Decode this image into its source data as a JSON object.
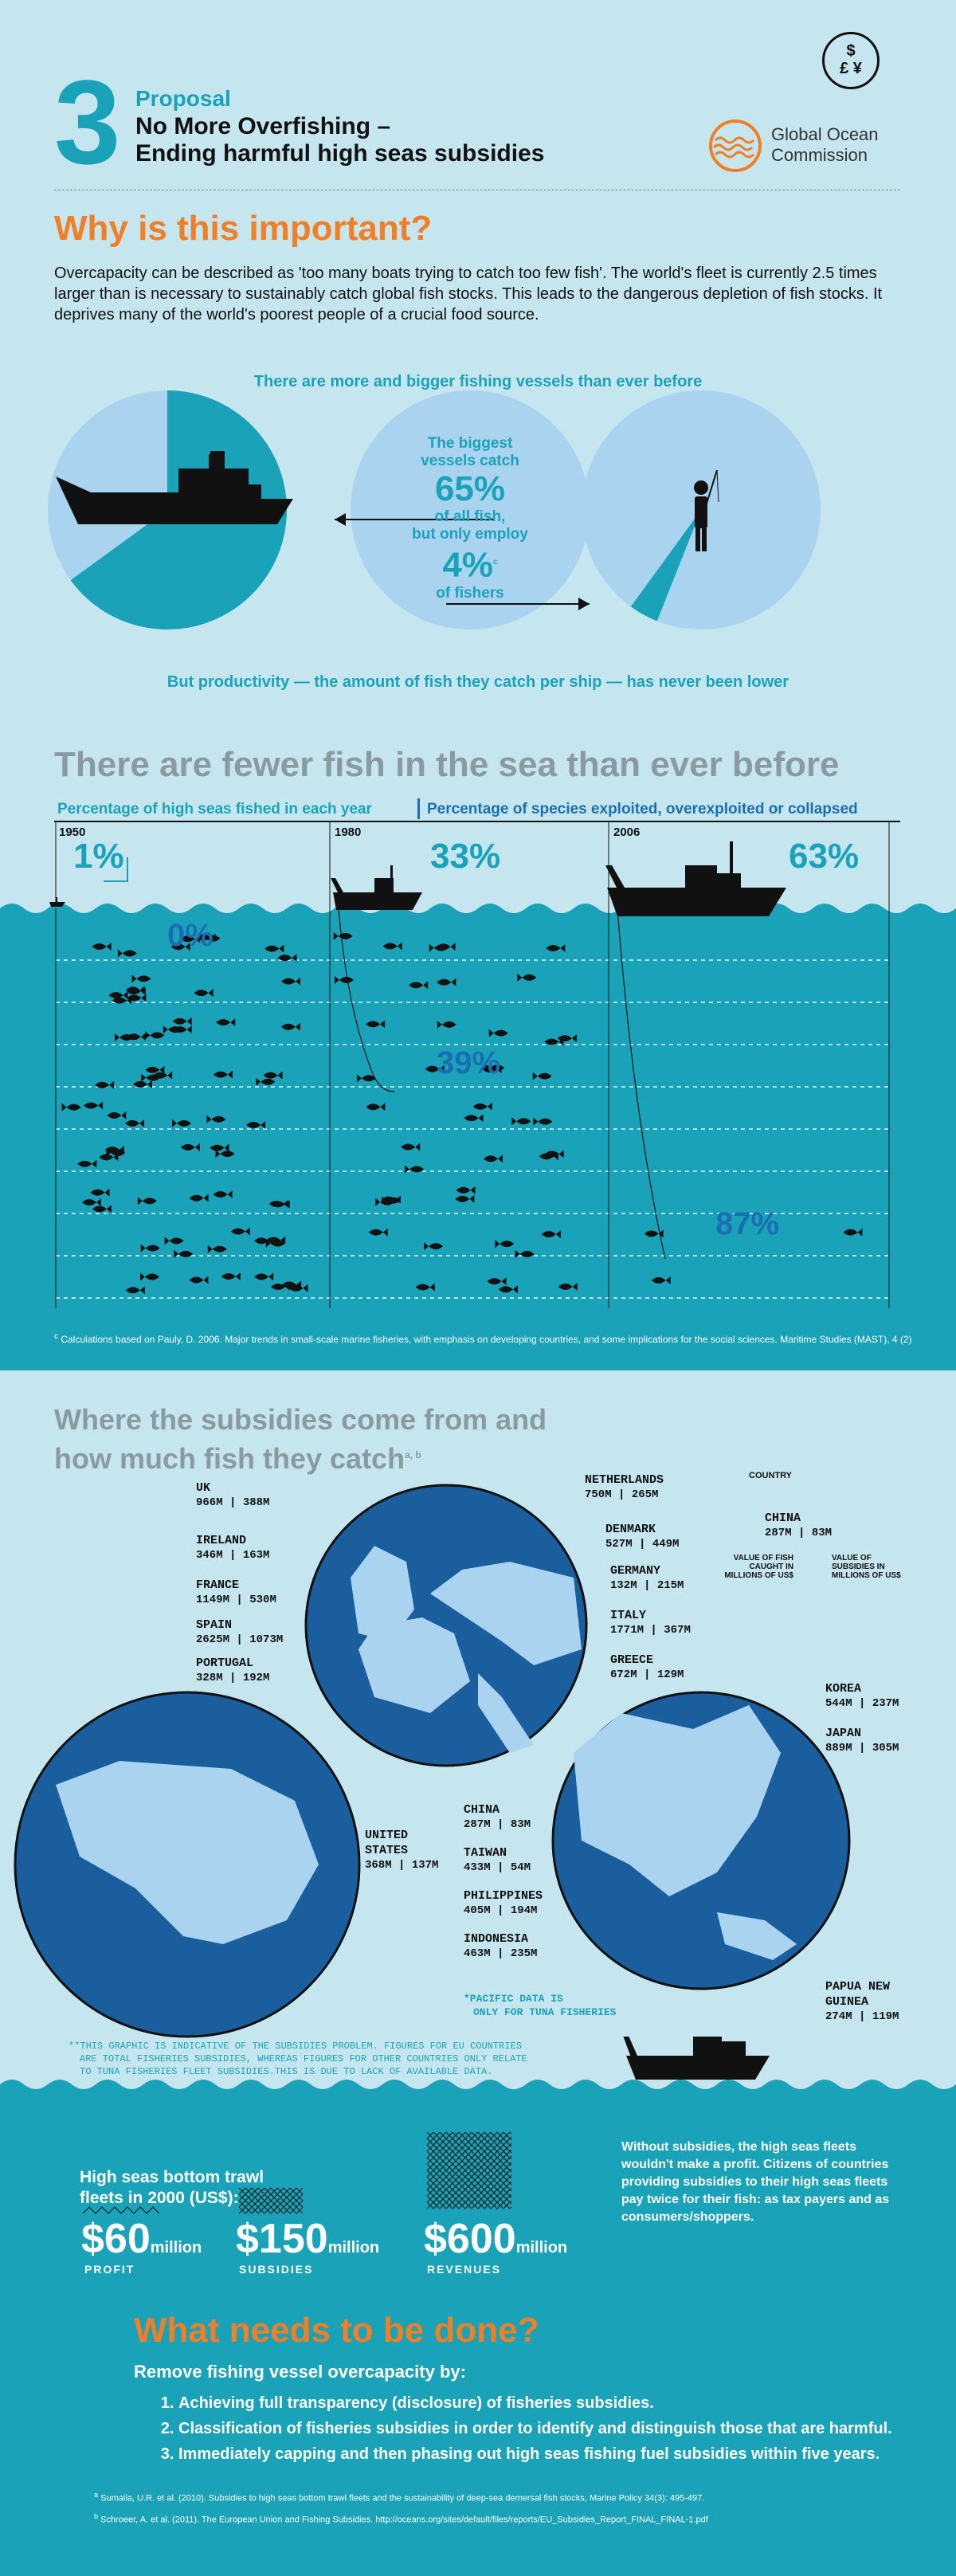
{
  "header": {
    "number": "3",
    "proposal": "Proposal",
    "title_line1": "No More Overfishing –",
    "title_line2": "Ending harmful high seas subsidies",
    "org_line1": "Global Ocean",
    "org_line2": "Commission",
    "currency_icon": "$ £ ¥"
  },
  "why": {
    "heading": "Why is this important?",
    "paragraph": "Overcapacity can be described as 'too many boats trying to catch too few fish'. The world's fleet is currently 2.5 times larger than is necessary to sustainably catch global fish stocks. This leads to the dangerous depletion of fish stocks. It deprives many of the world's poorest people of a crucial food source.",
    "vessels_title": "There are more and bigger fishing vessels than ever before",
    "center_line1": "The biggest",
    "center_line2": "vessels catch",
    "center_pct1": "65%",
    "center_line3": "of all fish,",
    "center_line4": "but only employ",
    "center_pct2": "4%",
    "center_sup": "c",
    "center_line5": "of fishers",
    "productivity": "But productivity — the amount of fish they catch per ship — has never been lower",
    "chart_data": {
      "type": "pie",
      "pies": [
        {
          "label": "The biggest vessels catch of all fish",
          "values": [
            65,
            35
          ]
        },
        {
          "label": "but only employ of fishers",
          "values": [
            4,
            96
          ]
        }
      ]
    }
  },
  "fewer": {
    "heading": "There are fewer fish in the sea than ever before",
    "legend_left": "Percentage of high seas fished in each year",
    "legend_right": "Percentage of species exploited, overexploited or collapsed",
    "years": [
      {
        "year": "1950",
        "fished": "1%",
        "exploited": "0%"
      },
      {
        "year": "1980",
        "fished": "33%",
        "exploited": "39%"
      },
      {
        "year": "2006",
        "fished": "63%",
        "exploited": "87%"
      }
    ],
    "footnote_sup": "c",
    "footnote": "Calculations based on Pauly, D. 2006. Major trends in small-scale marine fisheries, with emphasis on developing countries, and some implications for the social sciences. Maritime Studies (MAST), 4 (2)"
  },
  "subsidies": {
    "heading_line1": "Where the subsidies come from and",
    "heading_line2": "how much fish they catch",
    "heading_sup": "a, b",
    "key_country": "COUNTRY",
    "key_name": "CHINA",
    "key_caught": "287M",
    "key_sub": "83M",
    "key_label_left": "VALUE OF FISH CAUGHT IN MILLIONS OF US$",
    "key_label_right": "VALUE OF SUBSIDIES IN MILLIONS OF US$",
    "countries": [
      {
        "name": "UK",
        "caught": "966M",
        "sub": "388M"
      },
      {
        "name": "IRELAND",
        "caught": "346M",
        "sub": "163M"
      },
      {
        "name": "FRANCE",
        "caught": "1149M",
        "sub": "530M"
      },
      {
        "name": "SPAIN",
        "caught": "2625M",
        "sub": "1073M"
      },
      {
        "name": "PORTUGAL",
        "caught": "328M",
        "sub": "192M"
      },
      {
        "name": "NETHERLANDS",
        "caught": "750M",
        "sub": "265M"
      },
      {
        "name": "DENMARK",
        "caught": "527M",
        "sub": "449M"
      },
      {
        "name": "GERMANY",
        "caught": "132M",
        "sub": "215M"
      },
      {
        "name": "ITALY",
        "caught": "1771M",
        "sub": "367M"
      },
      {
        "name": "GREECE",
        "caught": "672M",
        "sub": "129M"
      },
      {
        "name": "KOREA",
        "caught": "544M",
        "sub": "237M"
      },
      {
        "name": "JAPAN",
        "caught": "889M",
        "sub": "305M"
      },
      {
        "name": "UNITED STATES",
        "caught": "368M",
        "sub": "137M"
      },
      {
        "name": "CHINA",
        "caught": "287M",
        "sub": "83M"
      },
      {
        "name": "TAIWAN",
        "caught": "433M",
        "sub": "54M"
      },
      {
        "name": "PHILIPPINES",
        "caught": "405M",
        "sub": "194M"
      },
      {
        "name": "INDONESIA",
        "caught": "463M",
        "sub": "235M"
      },
      {
        "name": "PAPUA NEW GUINEA",
        "caught": "274M",
        "sub": "119M"
      }
    ],
    "pacific_note1": "*PACIFIC DATA IS",
    "pacific_note2": "ONLY FOR TUNA FISHERIES",
    "disclaimer1": "**THIS GRAPHIC IS INDICATIVE OF THE SUBSIDIES PROBLEM. FIGURES FOR EU COUNTRIES",
    "disclaimer2": "ARE TOTAL FISHERIES SUBSIDIES, WHEREAS FIGURES FOR OTHER COUNTRIES ONLY RELATE",
    "disclaimer3": "TO TUNA FISHERIES FLEET SUBSIDIES.THIS IS DUE TO LACK OF AVAILABLE DATA."
  },
  "trawl": {
    "title_line1": "High seas bottom trawl",
    "title_line2": "fleets in 2000 (US$):",
    "items": [
      {
        "value": "$60",
        "unit": "million",
        "label": "PROFIT"
      },
      {
        "value": "$150",
        "unit": "million",
        "label": "SUBSIDIES"
      },
      {
        "value": "$600",
        "unit": "million",
        "label": "REVENUES"
      }
    ],
    "side_text": "Without subsidies, the high seas fleets wouldn't make a profit. Citizens of countries providing subsidies to their high seas fleets pay twice for their fish: as tax payers and as consumers/shoppers."
  },
  "todo": {
    "heading": "What needs to be done?",
    "intro": "Remove fishing vessel overcapacity by:",
    "items": [
      "Achieving full transparency (disclosure) of fisheries subsidies.",
      "Classification of fisheries subsidies in order to identify and distinguish those that are harmful.",
      "Immediately capping and then phasing out high seas fishing fuel subsidies within five years."
    ],
    "ref_a_sup": "a",
    "ref_a": "Sumaila, U.R. et al. (2010). Subsidies to high seas bottom trawl fleets and the sustainability of deep-sea demersal fish stocks, Marine Policy 34(3): 495-497.",
    "ref_b_sup": "b",
    "ref_b": "Schroeer, A. et al. (2011). The European Union and Fishing Subsidies. http://oceans.org/sites/default/files/reports/EU_Subsidies_Report_FINAL_FINAL-1.pdf"
  },
  "colors": {
    "teal": "#1aa3b8",
    "orange": "#f07f26",
    "light_blue": "#c5e6ef",
    "sea": "#1aa3b8",
    "globe": "#1a5e9e",
    "land": "#a9d3ef"
  }
}
